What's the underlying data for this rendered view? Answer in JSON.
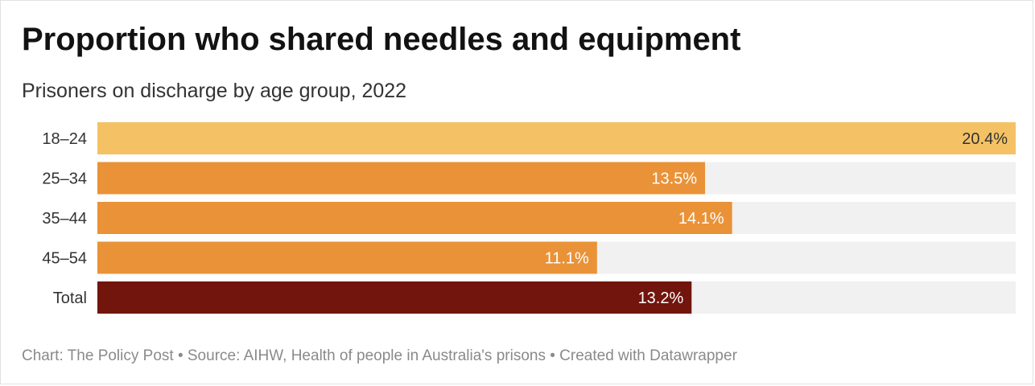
{
  "chart_data": {
    "type": "bar",
    "orientation": "horizontal",
    "title": "Proportion who shared needles and equipment",
    "subtitle": "Prisoners on discharge by age group, 2022",
    "categories": [
      "18–24",
      "25–34",
      "35–44",
      "45–54",
      "Total"
    ],
    "values": [
      20.4,
      13.5,
      14.1,
      11.1,
      13.2
    ],
    "value_labels": [
      "20.4%",
      "13.5%",
      "14.1%",
      "11.1%",
      "13.2%"
    ],
    "xlim": [
      0,
      20.4
    ],
    "grid": false,
    "legend": "none",
    "bar_colors": [
      "#f4c265",
      "#ea9237",
      "#ea9237",
      "#ea9237",
      "#72150d"
    ],
    "label_colors": [
      "#333333",
      "#ffffff",
      "#ffffff",
      "#ffffff",
      "#ffffff"
    ],
    "track_color": "#f1f1f1"
  },
  "footer": {
    "text": "Chart: The Policy Post • Source: AIHW, Health of people in Australia's prisons • Created with Datawrapper"
  }
}
